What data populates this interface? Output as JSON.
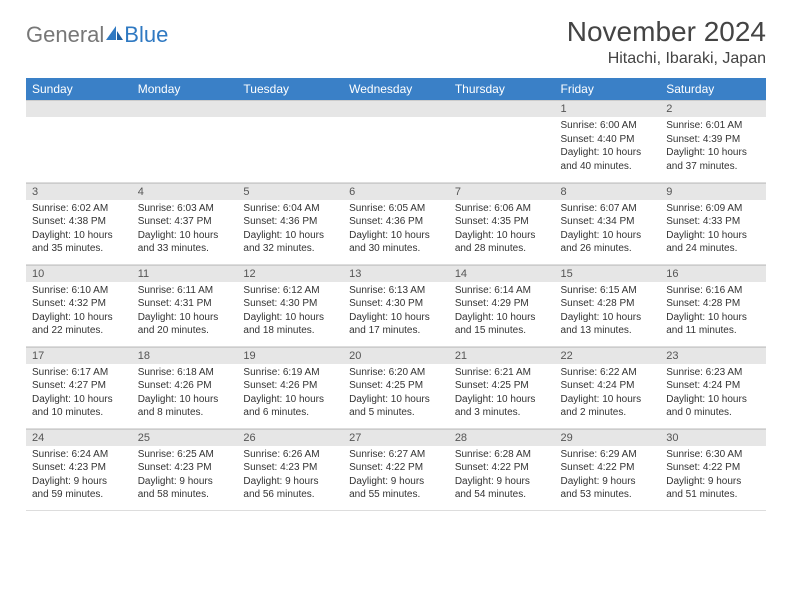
{
  "brand": {
    "part1": "General",
    "part2": "Blue"
  },
  "title": "November 2024",
  "location": "Hitachi, Ibaraki, Japan",
  "colors": {
    "header_bg": "#3a80c7",
    "header_fg": "#ffffff",
    "daynum_bg": "#e6e6e6",
    "text": "#333333",
    "brand_gray": "#777777",
    "brand_blue": "#2f79c2"
  },
  "weekdays": [
    "Sunday",
    "Monday",
    "Tuesday",
    "Wednesday",
    "Thursday",
    "Friday",
    "Saturday"
  ],
  "weeks": [
    [
      null,
      null,
      null,
      null,
      null,
      {
        "n": "1",
        "sr": "Sunrise: 6:00 AM",
        "ss": "Sunset: 4:40 PM",
        "d1": "Daylight: 10 hours",
        "d2": "and 40 minutes."
      },
      {
        "n": "2",
        "sr": "Sunrise: 6:01 AM",
        "ss": "Sunset: 4:39 PM",
        "d1": "Daylight: 10 hours",
        "d2": "and 37 minutes."
      }
    ],
    [
      {
        "n": "3",
        "sr": "Sunrise: 6:02 AM",
        "ss": "Sunset: 4:38 PM",
        "d1": "Daylight: 10 hours",
        "d2": "and 35 minutes."
      },
      {
        "n": "4",
        "sr": "Sunrise: 6:03 AM",
        "ss": "Sunset: 4:37 PM",
        "d1": "Daylight: 10 hours",
        "d2": "and 33 minutes."
      },
      {
        "n": "5",
        "sr": "Sunrise: 6:04 AM",
        "ss": "Sunset: 4:36 PM",
        "d1": "Daylight: 10 hours",
        "d2": "and 32 minutes."
      },
      {
        "n": "6",
        "sr": "Sunrise: 6:05 AM",
        "ss": "Sunset: 4:36 PM",
        "d1": "Daylight: 10 hours",
        "d2": "and 30 minutes."
      },
      {
        "n": "7",
        "sr": "Sunrise: 6:06 AM",
        "ss": "Sunset: 4:35 PM",
        "d1": "Daylight: 10 hours",
        "d2": "and 28 minutes."
      },
      {
        "n": "8",
        "sr": "Sunrise: 6:07 AM",
        "ss": "Sunset: 4:34 PM",
        "d1": "Daylight: 10 hours",
        "d2": "and 26 minutes."
      },
      {
        "n": "9",
        "sr": "Sunrise: 6:09 AM",
        "ss": "Sunset: 4:33 PM",
        "d1": "Daylight: 10 hours",
        "d2": "and 24 minutes."
      }
    ],
    [
      {
        "n": "10",
        "sr": "Sunrise: 6:10 AM",
        "ss": "Sunset: 4:32 PM",
        "d1": "Daylight: 10 hours",
        "d2": "and 22 minutes."
      },
      {
        "n": "11",
        "sr": "Sunrise: 6:11 AM",
        "ss": "Sunset: 4:31 PM",
        "d1": "Daylight: 10 hours",
        "d2": "and 20 minutes."
      },
      {
        "n": "12",
        "sr": "Sunrise: 6:12 AM",
        "ss": "Sunset: 4:30 PM",
        "d1": "Daylight: 10 hours",
        "d2": "and 18 minutes."
      },
      {
        "n": "13",
        "sr": "Sunrise: 6:13 AM",
        "ss": "Sunset: 4:30 PM",
        "d1": "Daylight: 10 hours",
        "d2": "and 17 minutes."
      },
      {
        "n": "14",
        "sr": "Sunrise: 6:14 AM",
        "ss": "Sunset: 4:29 PM",
        "d1": "Daylight: 10 hours",
        "d2": "and 15 minutes."
      },
      {
        "n": "15",
        "sr": "Sunrise: 6:15 AM",
        "ss": "Sunset: 4:28 PM",
        "d1": "Daylight: 10 hours",
        "d2": "and 13 minutes."
      },
      {
        "n": "16",
        "sr": "Sunrise: 6:16 AM",
        "ss": "Sunset: 4:28 PM",
        "d1": "Daylight: 10 hours",
        "d2": "and 11 minutes."
      }
    ],
    [
      {
        "n": "17",
        "sr": "Sunrise: 6:17 AM",
        "ss": "Sunset: 4:27 PM",
        "d1": "Daylight: 10 hours",
        "d2": "and 10 minutes."
      },
      {
        "n": "18",
        "sr": "Sunrise: 6:18 AM",
        "ss": "Sunset: 4:26 PM",
        "d1": "Daylight: 10 hours",
        "d2": "and 8 minutes."
      },
      {
        "n": "19",
        "sr": "Sunrise: 6:19 AM",
        "ss": "Sunset: 4:26 PM",
        "d1": "Daylight: 10 hours",
        "d2": "and 6 minutes."
      },
      {
        "n": "20",
        "sr": "Sunrise: 6:20 AM",
        "ss": "Sunset: 4:25 PM",
        "d1": "Daylight: 10 hours",
        "d2": "and 5 minutes."
      },
      {
        "n": "21",
        "sr": "Sunrise: 6:21 AM",
        "ss": "Sunset: 4:25 PM",
        "d1": "Daylight: 10 hours",
        "d2": "and 3 minutes."
      },
      {
        "n": "22",
        "sr": "Sunrise: 6:22 AM",
        "ss": "Sunset: 4:24 PM",
        "d1": "Daylight: 10 hours",
        "d2": "and 2 minutes."
      },
      {
        "n": "23",
        "sr": "Sunrise: 6:23 AM",
        "ss": "Sunset: 4:24 PM",
        "d1": "Daylight: 10 hours",
        "d2": "and 0 minutes."
      }
    ],
    [
      {
        "n": "24",
        "sr": "Sunrise: 6:24 AM",
        "ss": "Sunset: 4:23 PM",
        "d1": "Daylight: 9 hours",
        "d2": "and 59 minutes."
      },
      {
        "n": "25",
        "sr": "Sunrise: 6:25 AM",
        "ss": "Sunset: 4:23 PM",
        "d1": "Daylight: 9 hours",
        "d2": "and 58 minutes."
      },
      {
        "n": "26",
        "sr": "Sunrise: 6:26 AM",
        "ss": "Sunset: 4:23 PM",
        "d1": "Daylight: 9 hours",
        "d2": "and 56 minutes."
      },
      {
        "n": "27",
        "sr": "Sunrise: 6:27 AM",
        "ss": "Sunset: 4:22 PM",
        "d1": "Daylight: 9 hours",
        "d2": "and 55 minutes."
      },
      {
        "n": "28",
        "sr": "Sunrise: 6:28 AM",
        "ss": "Sunset: 4:22 PM",
        "d1": "Daylight: 9 hours",
        "d2": "and 54 minutes."
      },
      {
        "n": "29",
        "sr": "Sunrise: 6:29 AM",
        "ss": "Sunset: 4:22 PM",
        "d1": "Daylight: 9 hours",
        "d2": "and 53 minutes."
      },
      {
        "n": "30",
        "sr": "Sunrise: 6:30 AM",
        "ss": "Sunset: 4:22 PM",
        "d1": "Daylight: 9 hours",
        "d2": "and 51 minutes."
      }
    ]
  ]
}
